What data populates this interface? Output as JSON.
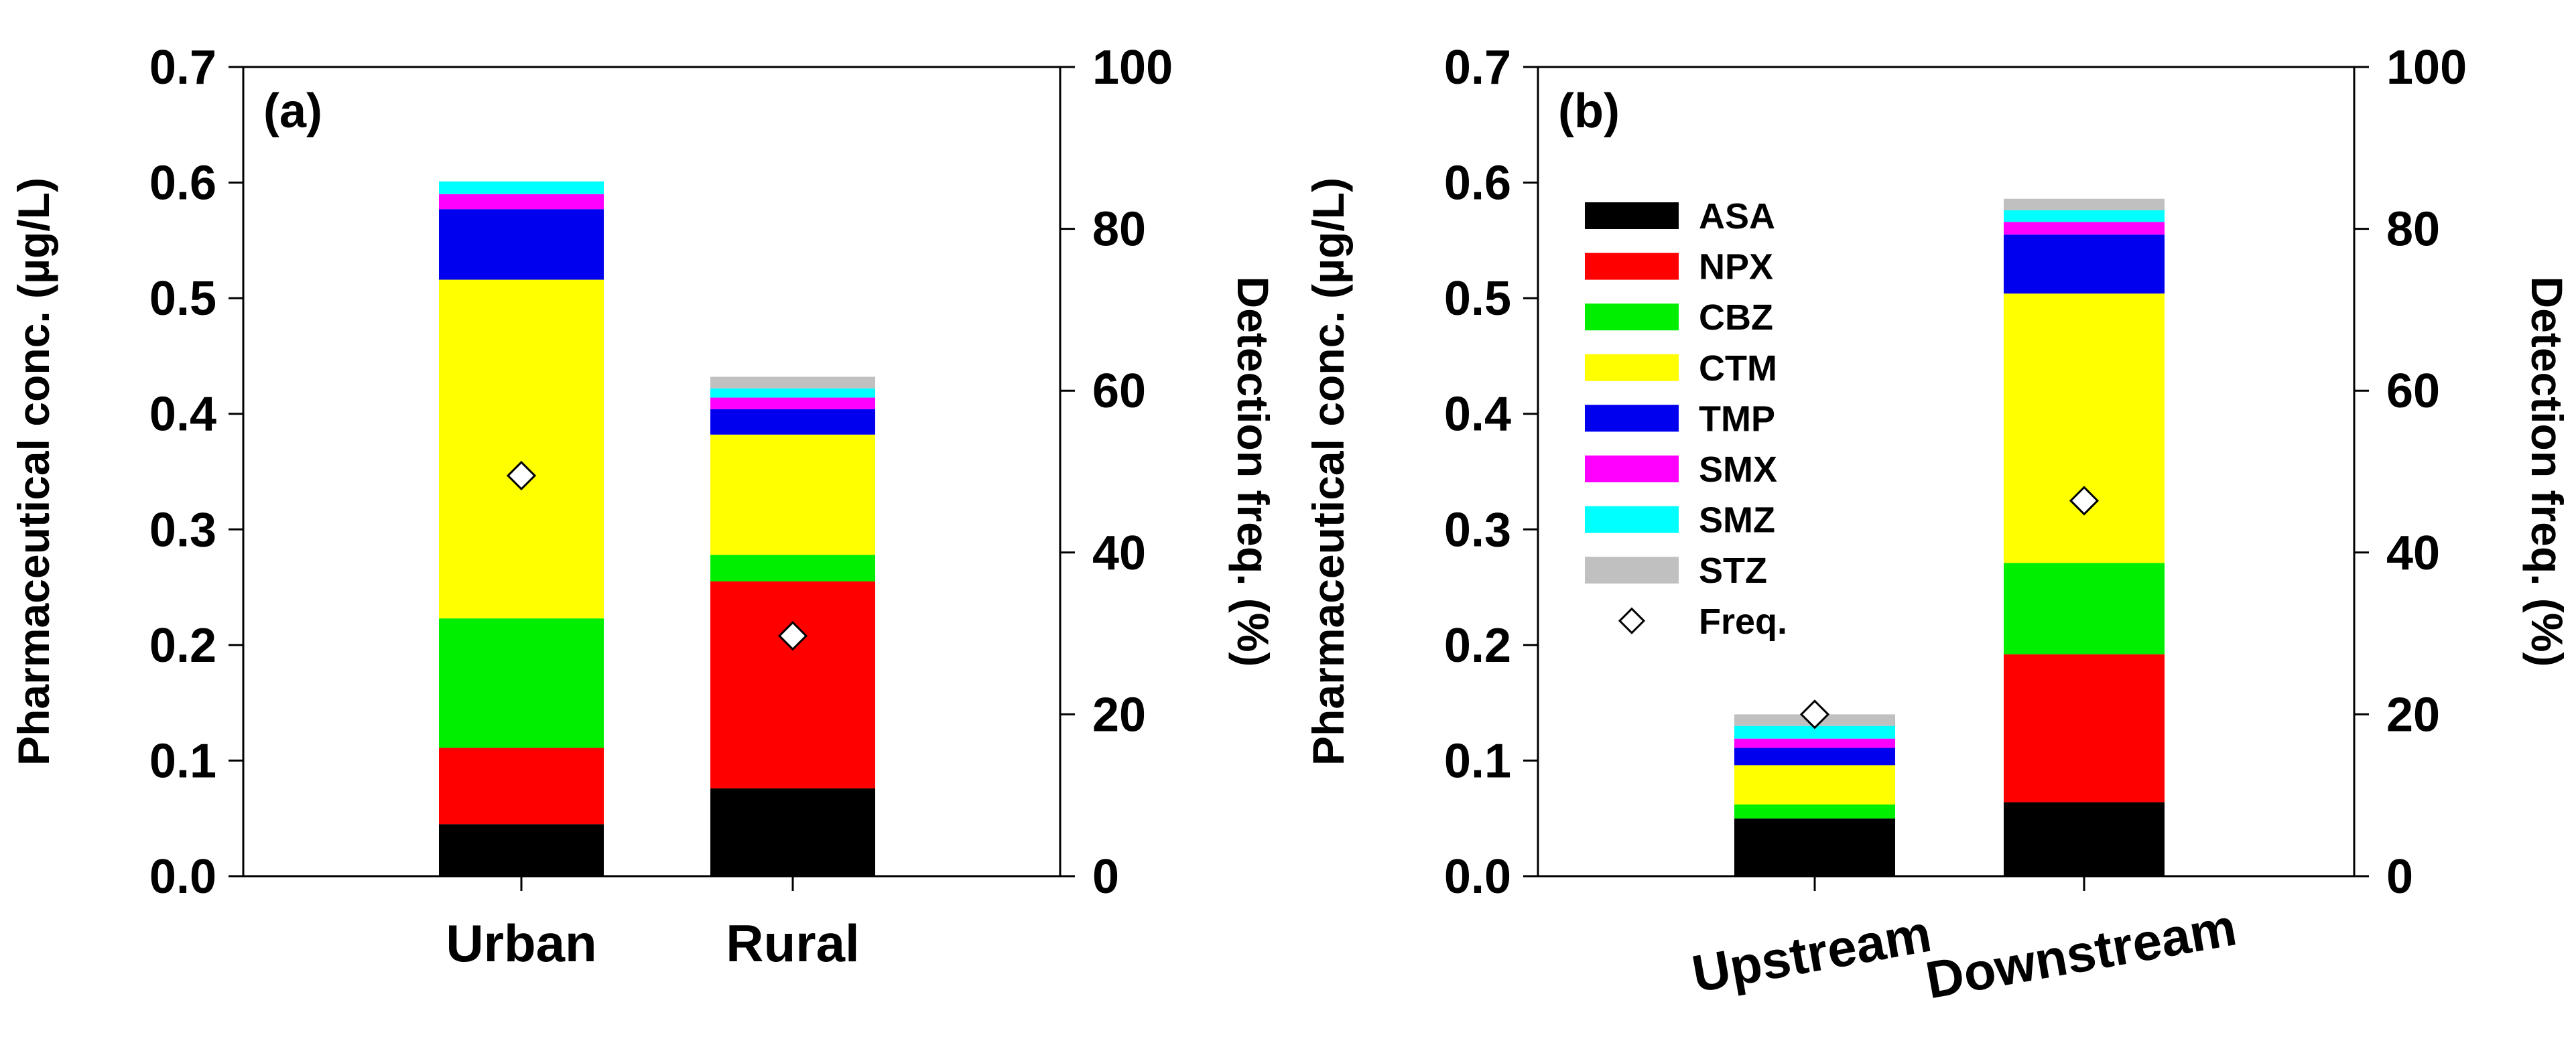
{
  "chart_data": [
    {
      "type": "bar",
      "stacked": true,
      "panel_label": "(a)",
      "categories": [
        "Urban",
        "Rural"
      ],
      "ylabel": "Pharmaceutical conc. (µg/L)",
      "y2label": "Detection freq. (%)",
      "ylim": [
        0,
        0.7
      ],
      "y2lim": [
        0,
        100
      ],
      "yticks": [
        "0.0",
        "0.1",
        "0.2",
        "0.3",
        "0.4",
        "0.5",
        "0.6",
        "0.7"
      ],
      "y2ticks": [
        "0",
        "20",
        "40",
        "60",
        "80",
        "100"
      ],
      "series": [
        {
          "name": "ASA",
          "color": "#000000",
          "values": [
            0.045,
            0.076
          ]
        },
        {
          "name": "NPX",
          "color": "#ff0000",
          "values": [
            0.066,
            0.179
          ]
        },
        {
          "name": "CBZ",
          "color": "#00ee00",
          "values": [
            0.112,
            0.023
          ]
        },
        {
          "name": "CTM",
          "color": "#ffff00",
          "values": [
            0.293,
            0.104
          ]
        },
        {
          "name": "TMP",
          "color": "#0000ee",
          "values": [
            0.061,
            0.022
          ]
        },
        {
          "name": "SMX",
          "color": "#ff00ff",
          "values": [
            0.013,
            0.01
          ]
        },
        {
          "name": "SMZ",
          "color": "#00ffff",
          "values": [
            0.011,
            0.008
          ]
        },
        {
          "name": "STZ",
          "color": "#c0c0c0",
          "values": [
            0.0,
            0.01
          ]
        }
      ],
      "freq": {
        "name": "Freq.",
        "values": [
          49.5,
          29.7
        ]
      }
    },
    {
      "type": "bar",
      "stacked": true,
      "panel_label": "(b)",
      "categories": [
        "Upstream",
        "Downstream"
      ],
      "ylabel": "Pharmaceutical conc. (µg/L)",
      "y2label": "Detection freq. (%)",
      "ylim": [
        0,
        0.7
      ],
      "y2lim": [
        0,
        100
      ],
      "yticks": [
        "0.0",
        "0.1",
        "0.2",
        "0.3",
        "0.4",
        "0.5",
        "0.6",
        "0.7"
      ],
      "y2ticks": [
        "0",
        "20",
        "40",
        "60",
        "80",
        "100"
      ],
      "series": [
        {
          "name": "ASA",
          "color": "#000000",
          "values": [
            0.05,
            0.064
          ]
        },
        {
          "name": "NPX",
          "color": "#ff0000",
          "values": [
            0.0,
            0.128
          ]
        },
        {
          "name": "CBZ",
          "color": "#00ee00",
          "values": [
            0.012,
            0.079
          ]
        },
        {
          "name": "CTM",
          "color": "#ffff00",
          "values": [
            0.034,
            0.233
          ]
        },
        {
          "name": "TMP",
          "color": "#0000ee",
          "values": [
            0.015,
            0.051
          ]
        },
        {
          "name": "SMX",
          "color": "#ff00ff",
          "values": [
            0.008,
            0.011
          ]
        },
        {
          "name": "SMZ",
          "color": "#00ffff",
          "values": [
            0.011,
            0.01
          ]
        },
        {
          "name": "STZ",
          "color": "#c0c0c0",
          "values": [
            0.01,
            0.01
          ]
        }
      ],
      "freq": {
        "name": "Freq.",
        "values": [
          20.0,
          46.4
        ]
      },
      "legend": {
        "placement": "top-left",
        "entries": [
          "ASA",
          "NPX",
          "CBZ",
          "CTM",
          "TMP",
          "SMX",
          "SMZ",
          "STZ",
          "Freq."
        ]
      }
    }
  ]
}
